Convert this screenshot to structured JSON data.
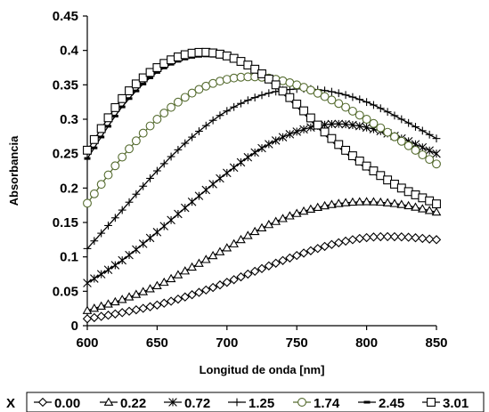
{
  "chart_data": {
    "type": "line",
    "xlabel": "Longitud de onda [nm]",
    "ylabel": "Absorbancia",
    "xlim": [
      600,
      850
    ],
    "ylim": [
      0,
      0.45
    ],
    "xticks": [
      600,
      650,
      700,
      750,
      800,
      850
    ],
    "yticks": [
      0,
      0.05,
      0.1,
      0.15,
      0.2,
      0.25,
      0.3,
      0.35,
      0.4,
      0.45
    ],
    "xtick_labels": [
      "600",
      "650",
      "700",
      "750",
      "800",
      "850"
    ],
    "ytick_labels": [
      "0",
      "0.05",
      "0.1",
      "0.15",
      "0.2",
      "0.25",
      "0.3",
      "0.35",
      "0.4",
      "0.45"
    ],
    "grid": false,
    "legend_title": "X",
    "legend_position": "bottom",
    "series": [
      {
        "name": "0.00",
        "marker": "diamond",
        "color": "#000000",
        "x": [
          600,
          625,
          650,
          675,
          700,
          725,
          750,
          775,
          800,
          825,
          850
        ],
        "y": [
          0.01,
          0.019,
          0.03,
          0.045,
          0.063,
          0.083,
          0.102,
          0.118,
          0.128,
          0.129,
          0.125
        ]
      },
      {
        "name": "0.22",
        "marker": "triangle",
        "color": "#000000",
        "x": [
          600,
          625,
          650,
          675,
          700,
          725,
          750,
          775,
          800,
          825,
          850
        ],
        "y": [
          0.022,
          0.038,
          0.058,
          0.085,
          0.113,
          0.142,
          0.163,
          0.176,
          0.18,
          0.176,
          0.165
        ]
      },
      {
        "name": "0.72",
        "marker": "asterisk",
        "color": "#000000",
        "x": [
          600,
          625,
          650,
          675,
          700,
          725,
          750,
          775,
          800,
          825,
          850
        ],
        "y": [
          0.062,
          0.095,
          0.136,
          0.18,
          0.222,
          0.258,
          0.282,
          0.293,
          0.288,
          0.272,
          0.25
        ]
      },
      {
        "name": "1.25",
        "marker": "plus",
        "color": "#000000",
        "x": [
          600,
          625,
          650,
          675,
          700,
          725,
          750,
          775,
          800,
          825,
          850
        ],
        "y": [
          0.112,
          0.168,
          0.225,
          0.274,
          0.312,
          0.335,
          0.344,
          0.34,
          0.325,
          0.3,
          0.272
        ]
      },
      {
        "name": "1.74",
        "marker": "circle",
        "color": "#556B2F",
        "x": [
          600,
          625,
          650,
          675,
          700,
          725,
          750,
          775,
          800,
          825,
          850
        ],
        "y": [
          0.178,
          0.245,
          0.3,
          0.338,
          0.358,
          0.361,
          0.35,
          0.328,
          0.3,
          0.268,
          0.235
        ]
      },
      {
        "name": "2.45",
        "marker": "dash",
        "color": "#000000",
        "x": [
          600,
          625,
          650,
          675,
          700,
          725,
          750,
          775,
          800,
          825,
          850
        ],
        "y": [
          0.243,
          0.318,
          0.368,
          0.39,
          0.388,
          0.363,
          0.318,
          0.268,
          0.228,
          0.198,
          0.178
        ]
      },
      {
        "name": "3.01",
        "marker": "square",
        "color": "#000000",
        "x": [
          600,
          625,
          650,
          675,
          700,
          725,
          750,
          775,
          800,
          825,
          850
        ],
        "y": [
          0.255,
          0.33,
          0.375,
          0.396,
          0.392,
          0.366,
          0.322,
          0.272,
          0.232,
          0.2,
          0.177
        ]
      }
    ]
  }
}
